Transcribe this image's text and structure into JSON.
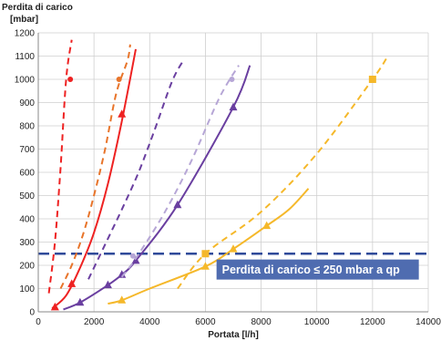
{
  "chart_data": {
    "type": "line",
    "ylabel_line1": "Perdita di carico",
    "ylabel_line2": "[mbar]",
    "xlabel": "Portata [l/h]",
    "xlim": [
      0,
      14000
    ],
    "ylim": [
      0,
      1200
    ],
    "x_ticks": [
      0,
      2000,
      4000,
      6000,
      8000,
      10000,
      12000,
      14000
    ],
    "y_ticks": [
      0,
      100,
      200,
      300,
      400,
      500,
      600,
      700,
      800,
      900,
      1000,
      1100,
      1200
    ],
    "grid": true,
    "threshold": {
      "y": 250,
      "color": "#2f4a9a"
    },
    "annotation": {
      "text": "Perdita di carico ≤ 250 mbar a qp",
      "background": "#4f6cb0"
    },
    "series": [
      {
        "color": "#ee2222",
        "dash": true,
        "marker": "circle",
        "x": [
          380,
          600,
          800,
          1000,
          1200
        ],
        "y": [
          80,
          300,
          620,
          1000,
          1170
        ],
        "markers_x": [
          1150
        ],
        "markers_y": [
          1000
        ]
      },
      {
        "color": "#ee2222",
        "dash": false,
        "marker": "triangle",
        "x": [
          500,
          1000,
          1500,
          2000,
          2500,
          3000,
          3500
        ],
        "y": [
          15,
          70,
          190,
          340,
          550,
          820,
          1130
        ],
        "markers_x": [
          600,
          1200,
          3000
        ],
        "markers_y": [
          20,
          120,
          850
        ]
      },
      {
        "color": "#e8742a",
        "dash": true,
        "marker": "circle",
        "x": [
          800,
          1200,
          1600,
          2000,
          2400,
          2800,
          3200,
          3300
        ],
        "y": [
          100,
          200,
          330,
          500,
          700,
          940,
          1080,
          1150
        ],
        "markers_x": [
          2900
        ],
        "markers_y": [
          1000
        ]
      },
      {
        "color": "#6a3fa0",
        "dash": true,
        "marker": "circle",
        "x": [
          1800,
          2400,
          3000,
          3600,
          4200,
          4800,
          5200
        ],
        "y": [
          140,
          290,
          440,
          600,
          790,
          990,
          1080
        ],
        "markers_x": [],
        "markers_y": []
      },
      {
        "color": "#6a3fa0",
        "dash": false,
        "marker": "triangle",
        "x": [
          900,
          1500,
          2500,
          3000,
          3500,
          5000,
          7000,
          7600
        ],
        "y": [
          10,
          40,
          115,
          160,
          220,
          460,
          880,
          1060
        ],
        "markers_x": [
          1500,
          2500,
          3000,
          3500,
          5000,
          7000
        ],
        "markers_y": [
          40,
          115,
          160,
          220,
          460,
          880
        ]
      },
      {
        "color": "#b6a6d6",
        "dash": true,
        "marker": "circle",
        "x": [
          3000,
          3500,
          4500,
          5500,
          6500,
          7200
        ],
        "y": [
          150,
          230,
          420,
          650,
          920,
          1060
        ],
        "markers_x": [
          3400,
          6950
        ],
        "markers_y": [
          240,
          1000
        ]
      },
      {
        "color": "#f5b82a",
        "dash": true,
        "marker": "square",
        "x": [
          5000,
          6000,
          8000,
          10000,
          12000,
          12500
        ],
        "y": [
          100,
          250,
          430,
          680,
          1000,
          1090
        ],
        "markers_x": [
          6000,
          12000
        ],
        "markers_y": [
          250,
          1000
        ]
      },
      {
        "color": "#f5b82a",
        "dash": false,
        "marker": "triangle",
        "x": [
          2500,
          3000,
          4000,
          6000,
          7000,
          8200,
          9000,
          9700
        ],
        "y": [
          35,
          50,
          100,
          195,
          270,
          370,
          440,
          530
        ],
        "markers_x": [
          3000,
          6000,
          7000,
          8200
        ],
        "markers_y": [
          50,
          195,
          270,
          370
        ]
      }
    ]
  }
}
